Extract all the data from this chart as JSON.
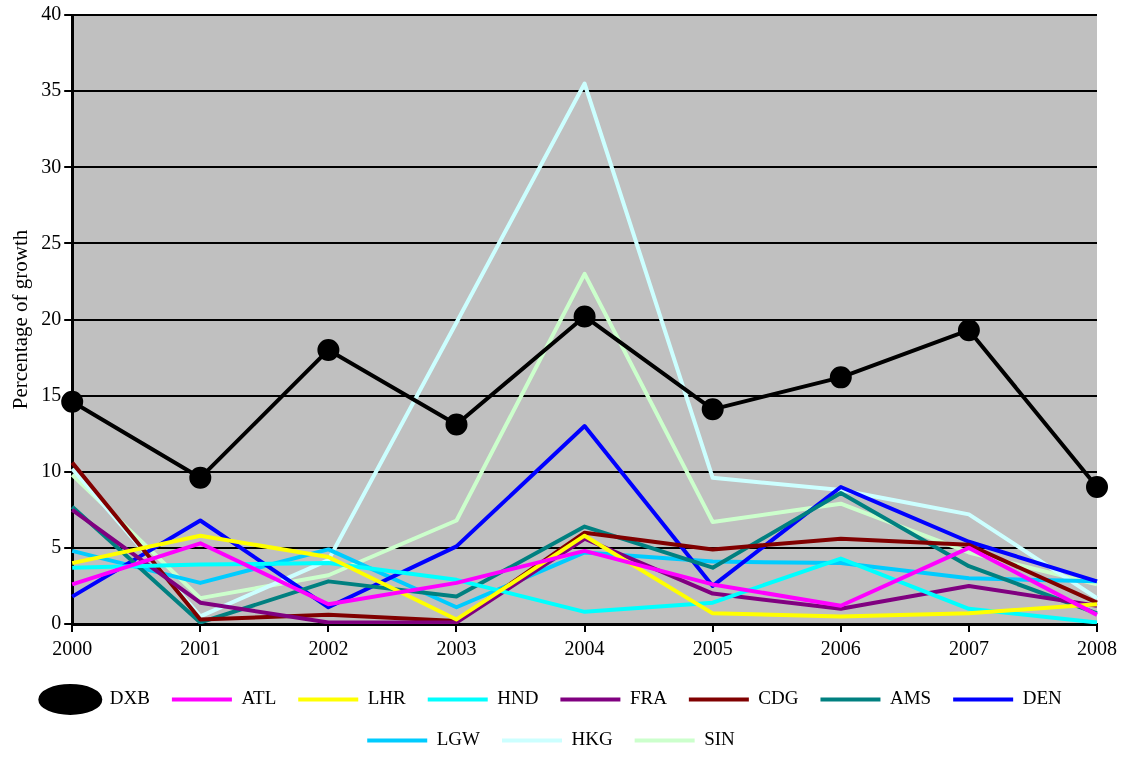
{
  "chart_data": {
    "type": "line",
    "ylabel": "Percentage of growth",
    "categories": [
      "2000",
      "2001",
      "2002",
      "2003",
      "2004",
      "2005",
      "2006",
      "2007",
      "2008"
    ],
    "ylim": [
      0,
      40
    ],
    "yticks": [
      0,
      5,
      10,
      15,
      20,
      25,
      30,
      35,
      40
    ],
    "grid": "y",
    "legend": "bottom",
    "marker": "none",
    "series": [
      {
        "name": "DXB",
        "color": "#000000",
        "marker": "circle",
        "values": [
          14.6,
          9.6,
          18.0,
          13.1,
          20.2,
          14.1,
          16.2,
          19.3,
          9.0
        ]
      },
      {
        "name": "ATL",
        "color": "#ff00ff",
        "values": [
          2.6,
          5.3,
          1.3,
          2.7,
          4.8,
          2.6,
          1.2,
          5.0,
          0.6
        ]
      },
      {
        "name": "LHR",
        "color": "#ffff00",
        "values": [
          4.0,
          5.8,
          4.4,
          0.3,
          5.8,
          0.7,
          0.5,
          0.7,
          1.3
        ]
      },
      {
        "name": "HND",
        "color": "#00ffff",
        "values": [
          3.7,
          3.9,
          4.0,
          2.9,
          0.8,
          1.4,
          4.3,
          1.0,
          0.1
        ]
      },
      {
        "name": "FRA",
        "color": "#800080",
        "values": [
          7.5,
          1.4,
          0.1,
          0.1,
          5.6,
          2.0,
          1.0,
          2.5,
          1.2
        ]
      },
      {
        "name": "CDG",
        "color": "#800000",
        "values": [
          10.6,
          0.3,
          0.6,
          0.2,
          6.0,
          4.9,
          5.6,
          5.2,
          1.4
        ]
      },
      {
        "name": "AMS",
        "color": "#008080",
        "values": [
          7.7,
          0.1,
          2.8,
          1.8,
          6.4,
          3.7,
          8.6,
          3.8,
          0.7
        ]
      },
      {
        "name": "DEN",
        "color": "#0000ff",
        "values": [
          1.8,
          6.8,
          1.1,
          5.1,
          13.0,
          2.5,
          9.0,
          5.4,
          2.8
        ]
      },
      {
        "name": "LGW",
        "color": "#00ccff",
        "values": [
          4.8,
          2.7,
          4.9,
          1.1,
          4.7,
          4.1,
          4.0,
          3.0,
          2.8
        ]
      },
      {
        "name": "HKG",
        "color": "#ccffff",
        "values": [
          10.2,
          0.5,
          4.2,
          19.8,
          35.5,
          9.6,
          8.8,
          7.2,
          1.7
        ]
      },
      {
        "name": "SIN",
        "color": "#ccffcc",
        "values": [
          9.8,
          1.7,
          3.2,
          6.8,
          23.0,
          6.7,
          7.9,
          4.7,
          2.6
        ]
      }
    ]
  }
}
